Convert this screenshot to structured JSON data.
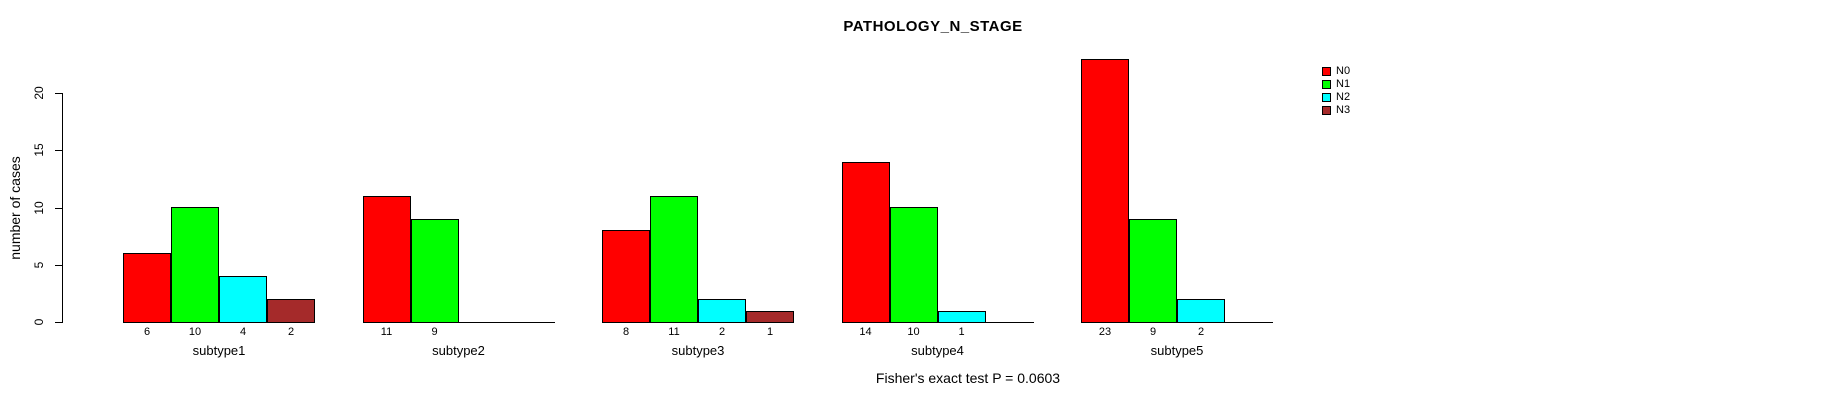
{
  "chart_data": {
    "type": "bar",
    "title": "PATHOLOGY_N_STAGE",
    "ylabel": "number of cases",
    "xlabel": "",
    "ylim": [
      0,
      23
    ],
    "yticks": [
      0,
      5,
      10,
      15,
      20
    ],
    "grid": false,
    "legend_position": "top-right",
    "categories": [
      "subtype1",
      "subtype2",
      "subtype3",
      "subtype4",
      "subtype5"
    ],
    "series": [
      {
        "name": "N0",
        "color": "#FF0000",
        "values": [
          6,
          11,
          8,
          14,
          23
        ]
      },
      {
        "name": "N1",
        "color": "#00FF00",
        "values": [
          10,
          9,
          11,
          10,
          9
        ]
      },
      {
        "name": "N2",
        "color": "#00FFFF",
        "values": [
          4,
          0,
          2,
          1,
          2
        ]
      },
      {
        "name": "N3",
        "color": "#A52A2A",
        "values": [
          2,
          0,
          1,
          0,
          0
        ]
      }
    ],
    "annotation": "Fisher's exact test P = 0.0603",
    "colors": {
      "bar_outline": "#000000",
      "background": "#FFFFFF",
      "text": "#000000"
    }
  }
}
